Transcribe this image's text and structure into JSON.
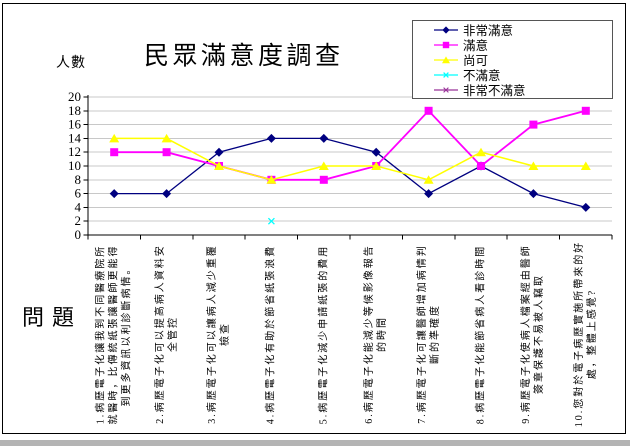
{
  "chart_data": {
    "type": "line",
    "title": "民眾滿意度調查",
    "ylabel": "人數",
    "xlabel": "問題",
    "ylim": [
      0,
      20
    ],
    "ytick_step": 2,
    "grid": true,
    "legend_position": "top-right",
    "categories": [
      [
        "1.病歷電子化讓我到不同醫療院所",
        "就醫時，比傳統紙張讓醫師更能得",
        "到更多資訊以利診斷病情。"
      ],
      [
        "2.病歷電子化可以提高病人資料安",
        "全管控"
      ],
      [
        "3.病歷電子化可以讓病人減少重覆",
        "檢查"
      ],
      [
        "4.病歷電子化有助於節省紙張浪費"
      ],
      [
        "5.病歷電子化減少申請紙張的費用"
      ],
      [
        "6.病歷電子化能減少等候影像報告",
        "的時間"
      ],
      [
        "7.病歷電子化可讓醫師增加病情判",
        "斷的準確度"
      ],
      [
        "8.病歷電子化能節省病人看診時間"
      ],
      [
        "9.病歷電子化使病人檔案經由醫師",
        "簽章保護不易被人竊取"
      ],
      [
        "10.您對於電子病歷實施所帶來的好",
        "處，整體上感覺?"
      ]
    ],
    "series": [
      {
        "name": "非常滿意",
        "color": "#000080",
        "marker": "diamond",
        "values": [
          6,
          6,
          12,
          14,
          14,
          12,
          6,
          10,
          6,
          4
        ]
      },
      {
        "name": "滿意",
        "color": "#FF00FF",
        "marker": "square",
        "values": [
          12,
          12,
          10,
          8,
          8,
          10,
          18,
          10,
          16,
          18
        ]
      },
      {
        "name": "尚可",
        "color": "#FFFF00",
        "marker": "triangle",
        "values": [
          14,
          14,
          10,
          8,
          10,
          10,
          8,
          12,
          10,
          10
        ]
      },
      {
        "name": "不滿意",
        "color": "#00FFFF",
        "marker": "x",
        "values": [
          null,
          null,
          null,
          2,
          null,
          null,
          null,
          null,
          null,
          null
        ]
      },
      {
        "name": "非常不滿意",
        "color": "#993399",
        "marker": "asterisk",
        "values": [
          null,
          null,
          null,
          null,
          null,
          null,
          null,
          null,
          null,
          null
        ]
      }
    ]
  }
}
